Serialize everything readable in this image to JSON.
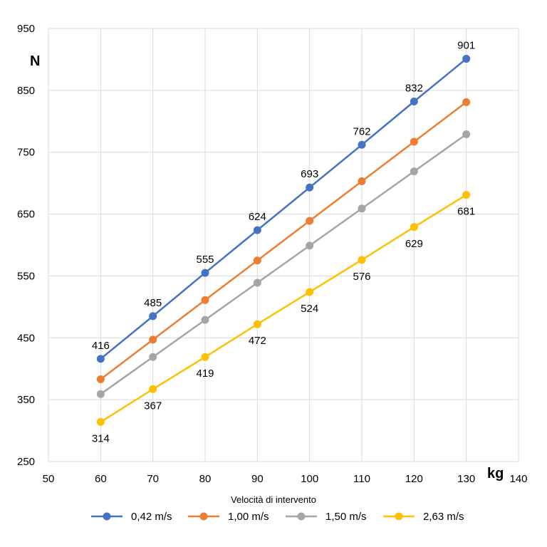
{
  "chart_data": {
    "type": "line",
    "title": "",
    "xlabel": "kg",
    "ylabel": "N",
    "xlim": [
      50,
      140
    ],
    "ylim": [
      250,
      950
    ],
    "xticks": [
      50,
      60,
      70,
      80,
      90,
      100,
      110,
      120,
      130,
      140
    ],
    "yticks": [
      250,
      350,
      450,
      550,
      650,
      750,
      850,
      950
    ],
    "grid": true,
    "legend_title": "Velocità di intervento",
    "legend_position": "bottom",
    "x": [
      60,
      70,
      80,
      90,
      100,
      110,
      120,
      130
    ],
    "series": [
      {
        "name": "0,42 m/s",
        "color": "#4472C4",
        "values": [
          416,
          485,
          555,
          624,
          693,
          762,
          832,
          901
        ],
        "labels_shown": true,
        "label_side": "above"
      },
      {
        "name": "1,00 m/s",
        "color": "#ED7D31",
        "values": [
          383,
          447,
          511,
          575,
          639,
          703,
          767,
          831
        ],
        "labels_shown": false
      },
      {
        "name": "1,50 m/s",
        "color": "#A5A5A5",
        "values": [
          359,
          419,
          479,
          539,
          599,
          659,
          719,
          779
        ],
        "labels_shown": false
      },
      {
        "name": "2,63 m/s",
        "color": "#FFC000",
        "values": [
          314,
          367,
          419,
          472,
          524,
          576,
          629,
          681
        ],
        "labels_shown": true,
        "label_side": "below"
      }
    ]
  }
}
